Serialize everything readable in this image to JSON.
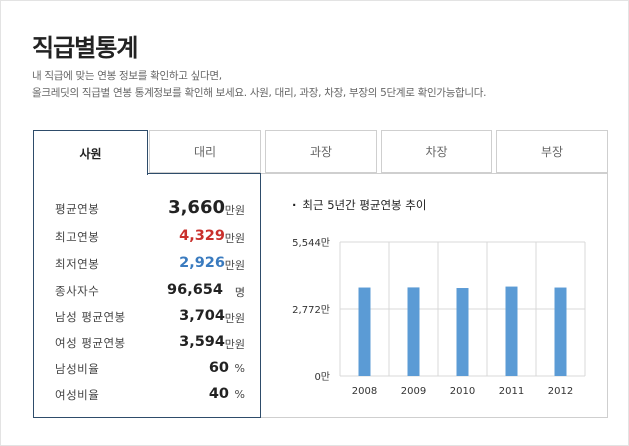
{
  "page": {
    "title": "직급별통계",
    "desc_line1": "내 직급에 맞는 연봉 정보를 확인하고 싶다면,",
    "desc_line2": "올크레딧의 직급별 연봉 통계정보를 확인해 보세요. 사원, 대리, 과장, 차장, 부장의 5단계로 확인가능합니다."
  },
  "tabs": [
    {
      "label": "사원",
      "active": true
    },
    {
      "label": "대리",
      "active": false
    },
    {
      "label": "과장",
      "active": false
    },
    {
      "label": "차장",
      "active": false
    },
    {
      "label": "부장",
      "active": false
    }
  ],
  "stats": [
    {
      "label": "평균연봉",
      "value": "3,660",
      "unit": "만원"
    },
    {
      "label": "최고연봉",
      "value": "4,329",
      "unit": "만원"
    },
    {
      "label": "최저연봉",
      "value": "2,926",
      "unit": "만원"
    },
    {
      "label": "종사자수",
      "value": "96,654",
      "unit": "명"
    },
    {
      "label": "남성 평균연봉",
      "value": "3,704",
      "unit": "만원"
    },
    {
      "label": "여성 평균연봉",
      "value": "3,594",
      "unit": "만원"
    },
    {
      "label": "남성비율",
      "value": "60",
      "unit": "%"
    },
    {
      "label": "여성비율",
      "value": "40",
      "unit": "%"
    }
  ],
  "colors": {
    "accent_border": "#2e4c6a",
    "max_value": "#c9302c",
    "min_value": "#3a7bbf",
    "bar": "#5b9bd5",
    "grid": "#d9d9d9"
  },
  "chart_data": {
    "type": "bar",
    "title": "최근 5년간 평균연봉 추이",
    "title_bullet": "·",
    "categories": [
      "2008",
      "2009",
      "2010",
      "2011",
      "2012"
    ],
    "values": [
      3660,
      3665,
      3640,
      3700,
      3660
    ],
    "y_ticks": [
      {
        "value": 0,
        "label": "0만"
      },
      {
        "value": 2772,
        "label": "2,772만"
      },
      {
        "value": 5544,
        "label": "5,544만"
      }
    ],
    "ylim": [
      0,
      5544
    ],
    "grid": true
  }
}
